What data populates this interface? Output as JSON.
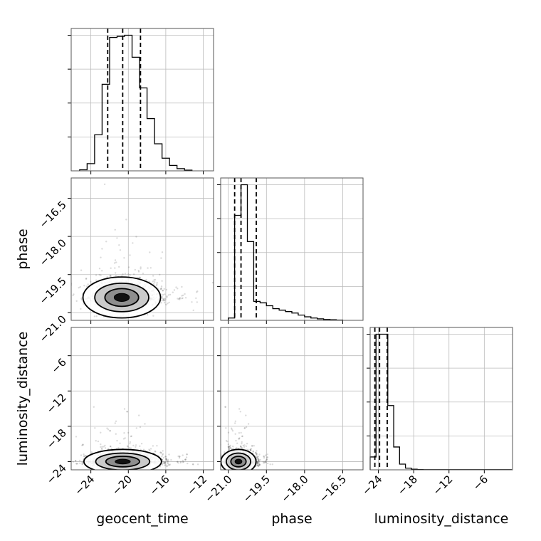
{
  "chart_data": {
    "type": "corner",
    "grid": true,
    "parameters": [
      "geocent_time",
      "phase",
      "luminosity_distance"
    ],
    "axes": {
      "geocent_time": {
        "range": [
          -26.1,
          -10.9
        ],
        "ticks": [
          -24,
          -20,
          -16,
          -12
        ],
        "tick_labels": [
          "−24",
          "−20",
          "−16",
          "−12"
        ]
      },
      "phase": {
        "range": [
          -21.3,
          -15.7
        ],
        "ticks": [
          -21.0,
          -19.5,
          -18.0,
          -16.5
        ],
        "tick_labels": [
          "−21.0",
          "−19.5",
          "−18.0",
          "−16.5"
        ]
      },
      "luminosity_distance": {
        "range": [
          -25.4,
          -1.2
        ],
        "ticks": [
          -24,
          -18,
          -12,
          -6
        ],
        "tick_labels": [
          "−24",
          "−18",
          "−12",
          "−6"
        ]
      }
    },
    "histograms": {
      "geocent_time": {
        "bin_edges": [
          -25.2,
          -24.4,
          -23.6,
          -22.8,
          -22.0,
          -21.2,
          -20.4,
          -19.6,
          -18.8,
          -18.0,
          -17.2,
          -16.4,
          -15.6,
          -14.8,
          -14.0,
          -13.2
        ],
        "counts": [
          0.3,
          2.0,
          10.0,
          24.0,
          37.0,
          37.3,
          37.6,
          31.5,
          23.0,
          14.5,
          7.5,
          3.5,
          1.5,
          0.6,
          0.2
        ],
        "quantiles": [
          -22.2,
          -20.6,
          -18.7
        ]
      },
      "phase": {
        "bin_edges": [
          -21.0,
          -20.75,
          -20.5,
          -20.25,
          -20.0,
          -19.75,
          -19.5,
          -19.25,
          -19.0,
          -18.75,
          -18.5,
          -18.25,
          -18.0,
          -17.75,
          -17.5,
          -17.25,
          -17.0,
          -16.75,
          -16.5
        ],
        "counts": [
          0.8,
          36.0,
          46.5,
          27.0,
          6.5,
          6.0,
          5.0,
          4.0,
          3.5,
          3.0,
          2.5,
          1.8,
          1.2,
          0.8,
          0.5,
          0.3,
          0.2,
          0.1
        ],
        "quantiles": [
          -20.75,
          -20.5,
          -19.9
        ]
      },
      "luminosity_distance": {
        "bin_edges": [
          -25.4,
          -24.4,
          -23.4,
          -22.4,
          -21.4,
          -20.4,
          -19.4,
          -18.4,
          -17.4,
          -16.4,
          -15.4,
          -14.4,
          -13.4,
          -12.4,
          -11.4,
          -10.4,
          -9.4,
          -8.4,
          -7.4,
          -6.4,
          -5.4,
          -4.4,
          -3.4,
          -2.4,
          -1.4
        ],
        "counts": [
          4.5,
          47.5,
          47.5,
          22.5,
          8.0,
          2.0,
          0.6,
          0.2,
          0.1,
          0.05,
          0.05,
          0.05,
          0.05,
          0.05,
          0.05,
          0.05,
          0.05,
          0.05,
          0.05,
          0.05,
          0.05,
          0.05,
          0.05,
          0.05
        ],
        "quantiles": [
          -24.6,
          -23.8,
          -22.5
        ]
      }
    },
    "scatter_2d": [
      {
        "x": "geocent_time",
        "y": "phase",
        "peak": [
          -20.7,
          -20.4
        ],
        "spread": [
          1.8,
          0.35
        ]
      },
      {
        "x": "geocent_time",
        "y": "luminosity_distance",
        "peak": [
          -20.6,
          -24.0
        ],
        "spread": [
          1.8,
          0.9
        ]
      },
      {
        "x": "phase",
        "y": "luminosity_distance",
        "peak": [
          -20.6,
          -24.0
        ],
        "spread": [
          0.3,
          0.9
        ]
      }
    ]
  }
}
